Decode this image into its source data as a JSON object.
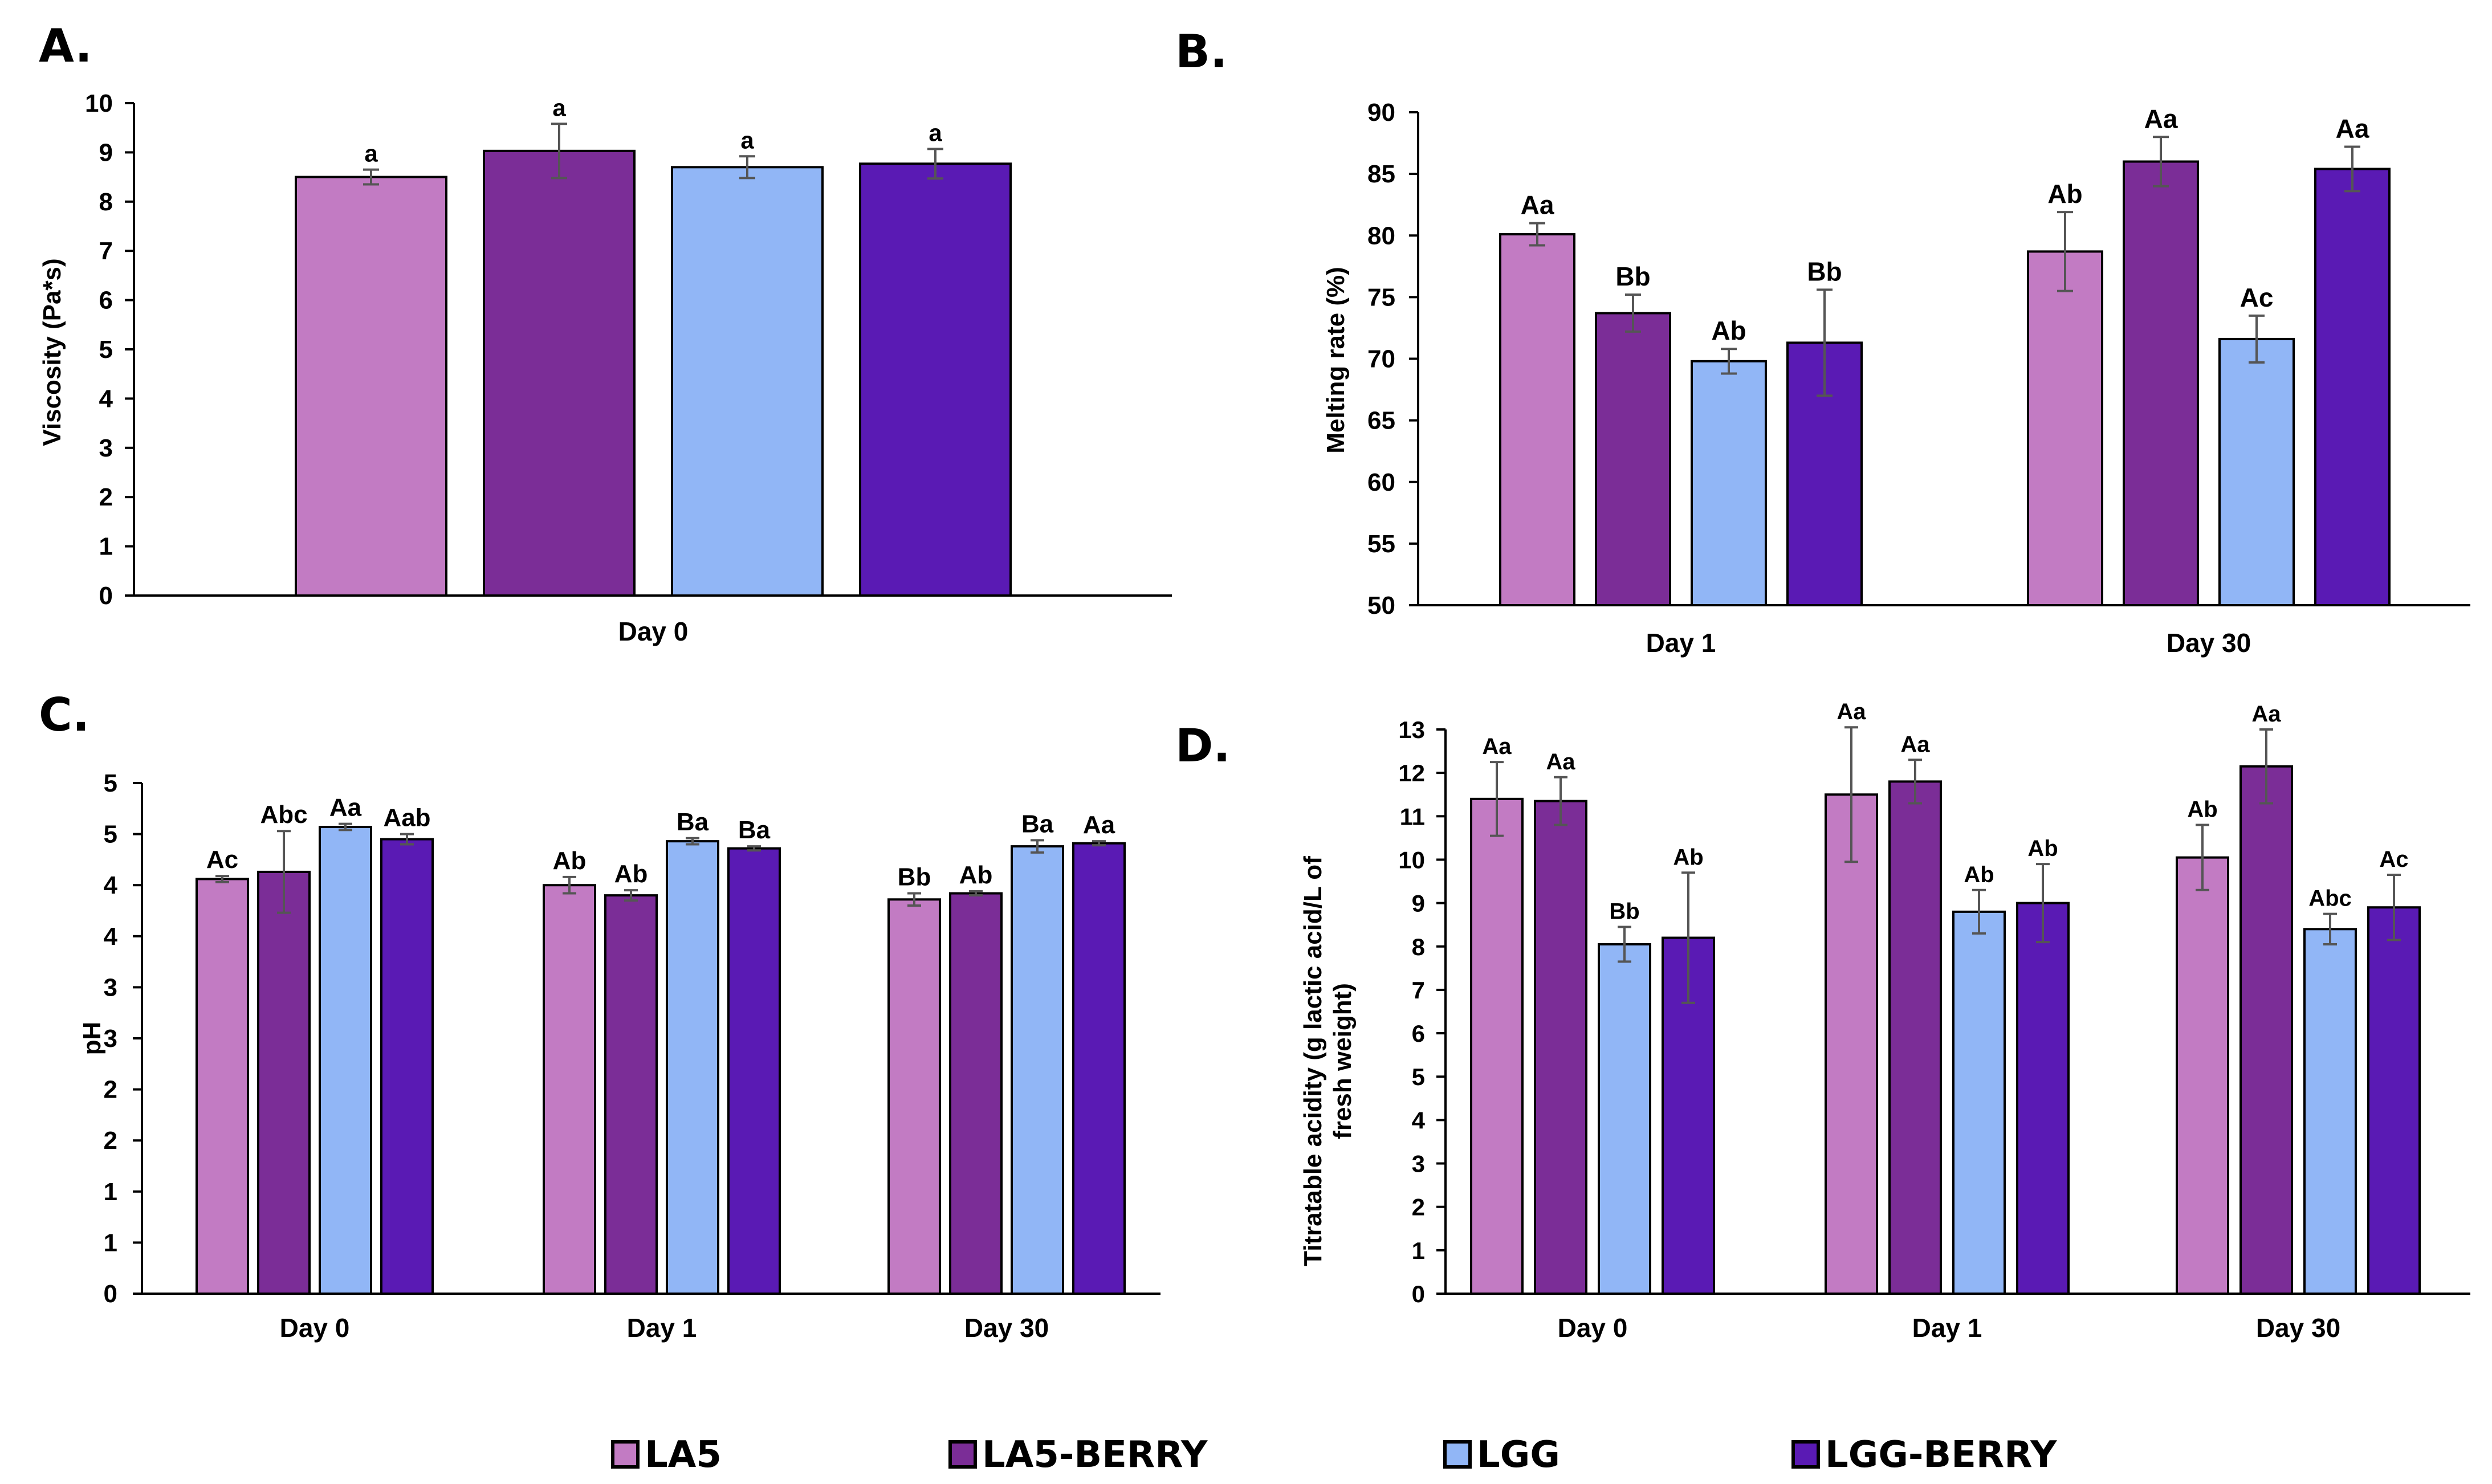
{
  "figure": {
    "legend": [
      {
        "label": "LA5",
        "color": "#c27bc3"
      },
      {
        "label": "LA5-BERRY",
        "color": "#7b2d97"
      },
      {
        "label": "LGG",
        "color": "#91b6f6"
      },
      {
        "label": "LGG-BERRY",
        "color": "#5a1ab4"
      }
    ]
  },
  "chart_data": [
    {
      "panel": "A.",
      "type": "bar",
      "title": "",
      "xlabel": "",
      "ylabel": "Viscosity (Pa*s)",
      "ylim": [
        0,
        10
      ],
      "yticks": [
        0,
        1,
        2,
        3,
        4,
        5,
        6,
        7,
        8,
        9,
        10
      ],
      "ytick_labels": [
        "0",
        "1",
        "2",
        "3",
        "4",
        "5",
        "6",
        "7",
        "8",
        "9",
        "10"
      ],
      "categories": [
        "Day 0"
      ],
      "series": [
        {
          "name": "LA5",
          "values": [
            8.5
          ],
          "errors": [
            0.15
          ],
          "labels": [
            "a"
          ]
        },
        {
          "name": "LA5-BERRY",
          "values": [
            9.03
          ],
          "errors": [
            0.55
          ],
          "labels": [
            "a"
          ]
        },
        {
          "name": "LGG",
          "values": [
            8.7
          ],
          "errors": [
            0.22
          ],
          "labels": [
            "a"
          ]
        },
        {
          "name": "LGG-BERRY",
          "values": [
            8.77
          ],
          "errors": [
            0.3
          ],
          "labels": [
            "a"
          ]
        }
      ],
      "legend": "bottom",
      "grid": false
    },
    {
      "panel": "B.",
      "type": "bar",
      "title": "",
      "xlabel": "",
      "ylabel": "Melting rate (%)",
      "ylim": [
        50,
        90
      ],
      "yticks": [
        50,
        55,
        60,
        65,
        70,
        75,
        80,
        85,
        90
      ],
      "ytick_labels": [
        "50",
        "55",
        "60",
        "65",
        "70",
        "75",
        "80",
        "85",
        "90"
      ],
      "categories": [
        "Day 1",
        "Day 30"
      ],
      "series": [
        {
          "name": "LA5",
          "values": [
            80.1,
            78.7
          ],
          "errors": [
            0.9,
            3.2
          ],
          "labels": [
            "Aa",
            "Ab"
          ]
        },
        {
          "name": "LA5-BERRY",
          "values": [
            73.7,
            86.0
          ],
          "errors": [
            1.5,
            2.0
          ],
          "labels": [
            "Bb",
            "Aa"
          ]
        },
        {
          "name": "LGG",
          "values": [
            69.8,
            71.6
          ],
          "errors": [
            1.0,
            1.9
          ],
          "labels": [
            "Ab",
            "Ac"
          ]
        },
        {
          "name": "LGG-BERRY",
          "values": [
            71.3,
            85.4
          ],
          "errors": [
            4.3,
            1.8
          ],
          "labels": [
            "Bb",
            "Aa"
          ]
        }
      ],
      "legend": "bottom",
      "grid": false
    },
    {
      "panel": "C.",
      "type": "bar",
      "title": "",
      "xlabel": "",
      "ylabel": "pH",
      "ylim": [
        0,
        5
      ],
      "yticks": [
        0,
        0.5,
        1,
        1.5,
        2,
        2.5,
        3,
        3.5,
        4,
        4.5,
        5
      ],
      "ytick_labels": [
        "0",
        "1",
        "1",
        "2",
        "2",
        "3",
        "3",
        "4",
        "4",
        "5",
        "5"
      ],
      "categories": [
        "Day 0",
        "Day 1",
        "Day 30"
      ],
      "series": [
        {
          "name": "LA5",
          "values": [
            4.06,
            4.0,
            3.86
          ],
          "errors": [
            0.03,
            0.08,
            0.06
          ],
          "labels": [
            "Ac",
            "Ab",
            "Bb"
          ]
        },
        {
          "name": "LA5-BERRY",
          "values": [
            4.13,
            3.9,
            3.92
          ],
          "errors": [
            0.4,
            0.05,
            0.02
          ],
          "labels": [
            "Abc",
            "Ab",
            "Ab"
          ]
        },
        {
          "name": "LGG",
          "values": [
            4.57,
            4.43,
            4.38
          ],
          "errors": [
            0.03,
            0.03,
            0.06
          ],
          "labels": [
            "Aa",
            "Ba",
            "Ba"
          ]
        },
        {
          "name": "LGG-BERRY",
          "values": [
            4.45,
            4.36,
            4.41
          ],
          "errors": [
            0.05,
            0.02,
            0.02
          ],
          "labels": [
            "Aab",
            "Ba",
            "Aa"
          ]
        }
      ],
      "legend": "bottom",
      "grid": false
    },
    {
      "panel": "D.",
      "type": "bar",
      "title": "",
      "xlabel": "",
      "ylabel": "Titratable acidity (g lactic acid/L of fresh weight)",
      "ylabel_lines": [
        "Titratable acidity (g lactic acid/L of",
        "fresh weight)"
      ],
      "ylim": [
        0,
        13
      ],
      "yticks": [
        0,
        1,
        2,
        3,
        4,
        5,
        6,
        7,
        8,
        9,
        10,
        11,
        12,
        13
      ],
      "ytick_labels": [
        "0",
        "1",
        "2",
        "3",
        "4",
        "5",
        "6",
        "7",
        "8",
        "9",
        "10",
        "11",
        "12",
        "13"
      ],
      "categories": [
        "Day 0",
        "Day 1",
        "Day 30"
      ],
      "series": [
        {
          "name": "LA5",
          "values": [
            11.4,
            11.5,
            10.05
          ],
          "errors": [
            0.85,
            1.55,
            0.75
          ],
          "labels": [
            "Aa",
            "Aa",
            "Ab"
          ]
        },
        {
          "name": "LA5-BERRY",
          "values": [
            11.35,
            11.8,
            12.15
          ],
          "errors": [
            0.55,
            0.5,
            0.85
          ],
          "labels": [
            "Aa",
            "Aa",
            "Aa"
          ]
        },
        {
          "name": "LGG",
          "values": [
            8.05,
            8.8,
            8.4
          ],
          "errors": [
            0.4,
            0.5,
            0.35
          ],
          "labels": [
            "Bb",
            "Ab",
            "Abc"
          ]
        },
        {
          "name": "LGG-BERRY",
          "values": [
            8.2,
            9.0,
            8.9
          ],
          "errors": [
            1.5,
            0.9,
            0.75
          ],
          "labels": [
            "Ab",
            "Ab",
            "Ac"
          ]
        }
      ],
      "legend": "bottom",
      "grid": false
    }
  ]
}
